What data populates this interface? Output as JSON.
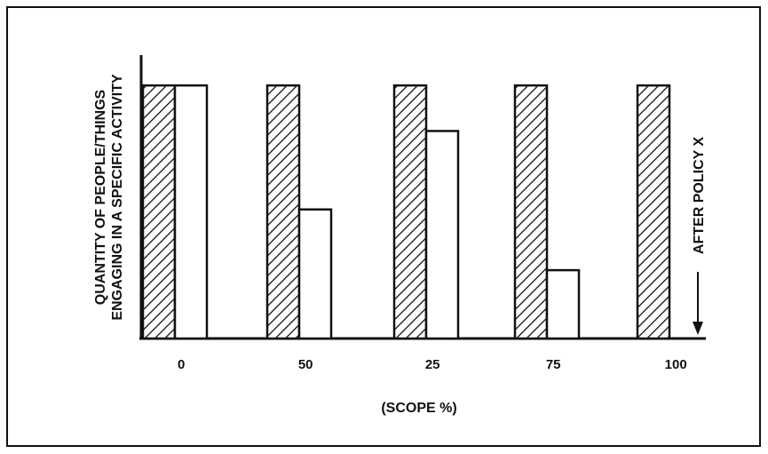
{
  "chart_data": {
    "type": "bar",
    "categories": [
      "0",
      "50",
      "25",
      "75",
      "100"
    ],
    "series": [
      {
        "values": [
          100,
          100,
          100,
          100,
          100
        ],
        "pattern": "hatched"
      },
      {
        "values": [
          100,
          51,
          82,
          27,
          0
        ],
        "pattern": "open"
      }
    ],
    "xlabel": "(SCOPE %)",
    "ylabel_lines": [
      "QUANTITY OF PEOPLE/THINGS",
      "ENGAGING IN A SPECIFIC ACTIVITY"
    ],
    "annotation": "AFTER POLICY X",
    "ylim": [
      0,
      112
    ],
    "grid": false,
    "legend": "none",
    "colors": {
      "stroke": "#111111",
      "fill": "#ffffff"
    }
  }
}
